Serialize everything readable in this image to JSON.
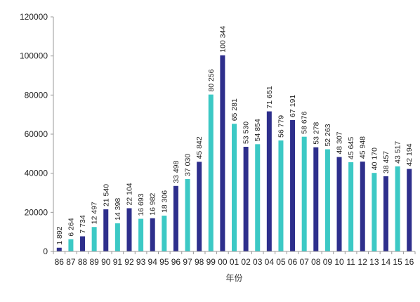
{
  "chart_data": {
    "type": "bar",
    "categories": [
      "86",
      "87",
      "88",
      "89",
      "90",
      "91",
      "92",
      "93",
      "94",
      "95",
      "96",
      "97",
      "98",
      "99",
      "00",
      "01",
      "02",
      "03",
      "04",
      "05",
      "06",
      "07",
      "08",
      "09",
      "10",
      "11",
      "12",
      "13",
      "14",
      "15",
      "16"
    ],
    "values": [
      1892,
      6264,
      7734,
      12497,
      21540,
      14398,
      22104,
      16693,
      16982,
      18306,
      33498,
      37030,
      45842,
      80256,
      100344,
      65281,
      53530,
      54854,
      71651,
      56779,
      67191,
      58676,
      53278,
      52263,
      48307,
      45645,
      45948,
      40170,
      38457,
      43517,
      42194
    ],
    "value_labels": [
      "1 892",
      "6 264",
      "7 734",
      "12 497",
      "21 540",
      "14 398",
      "22 104",
      "16 693",
      "16 982",
      "18 306",
      "33 498",
      "37 030",
      "45 842",
      "80 256",
      "100 344",
      "65 281",
      "53 530",
      "54 854",
      "71 651",
      "56 779",
      "67 191",
      "58 676",
      "53 278",
      "52 263",
      "48 307",
      "45 645",
      "45 948",
      "40 170",
      "38 457",
      "43 517",
      "42 194"
    ],
    "bar_colors": [
      "#2e2f8c",
      "#3cc9c5",
      "#2e2f8c",
      "#3cc9c5",
      "#2e2f8c",
      "#3cc9c5",
      "#2e2f8c",
      "#3cc9c5",
      "#2e2f8c",
      "#3cc9c5",
      "#2e2f8c",
      "#3cc9c5",
      "#2e2f8c",
      "#3cc9c5",
      "#2e2f8c",
      "#3cc9c5",
      "#2e2f8c",
      "#3cc9c5",
      "#2e2f8c",
      "#3cc9c5",
      "#2e2f8c",
      "#3cc9c5",
      "#2e2f8c",
      "#3cc9c5",
      "#2e2f8c",
      "#3cc9c5",
      "#2e2f8c",
      "#3cc9c5",
      "#2e2f8c",
      "#3cc9c5",
      "#2e2f8c"
    ],
    "yticks": [
      0,
      20000,
      40000,
      60000,
      80000,
      100000,
      120000
    ],
    "ylim": [
      0,
      120000
    ],
    "xlabel": "年份",
    "ylabel": "",
    "title": "",
    "grid": false,
    "colors": {
      "dark": "#2e2f8c",
      "light": "#3cc9c5",
      "axis": "#999999"
    }
  }
}
